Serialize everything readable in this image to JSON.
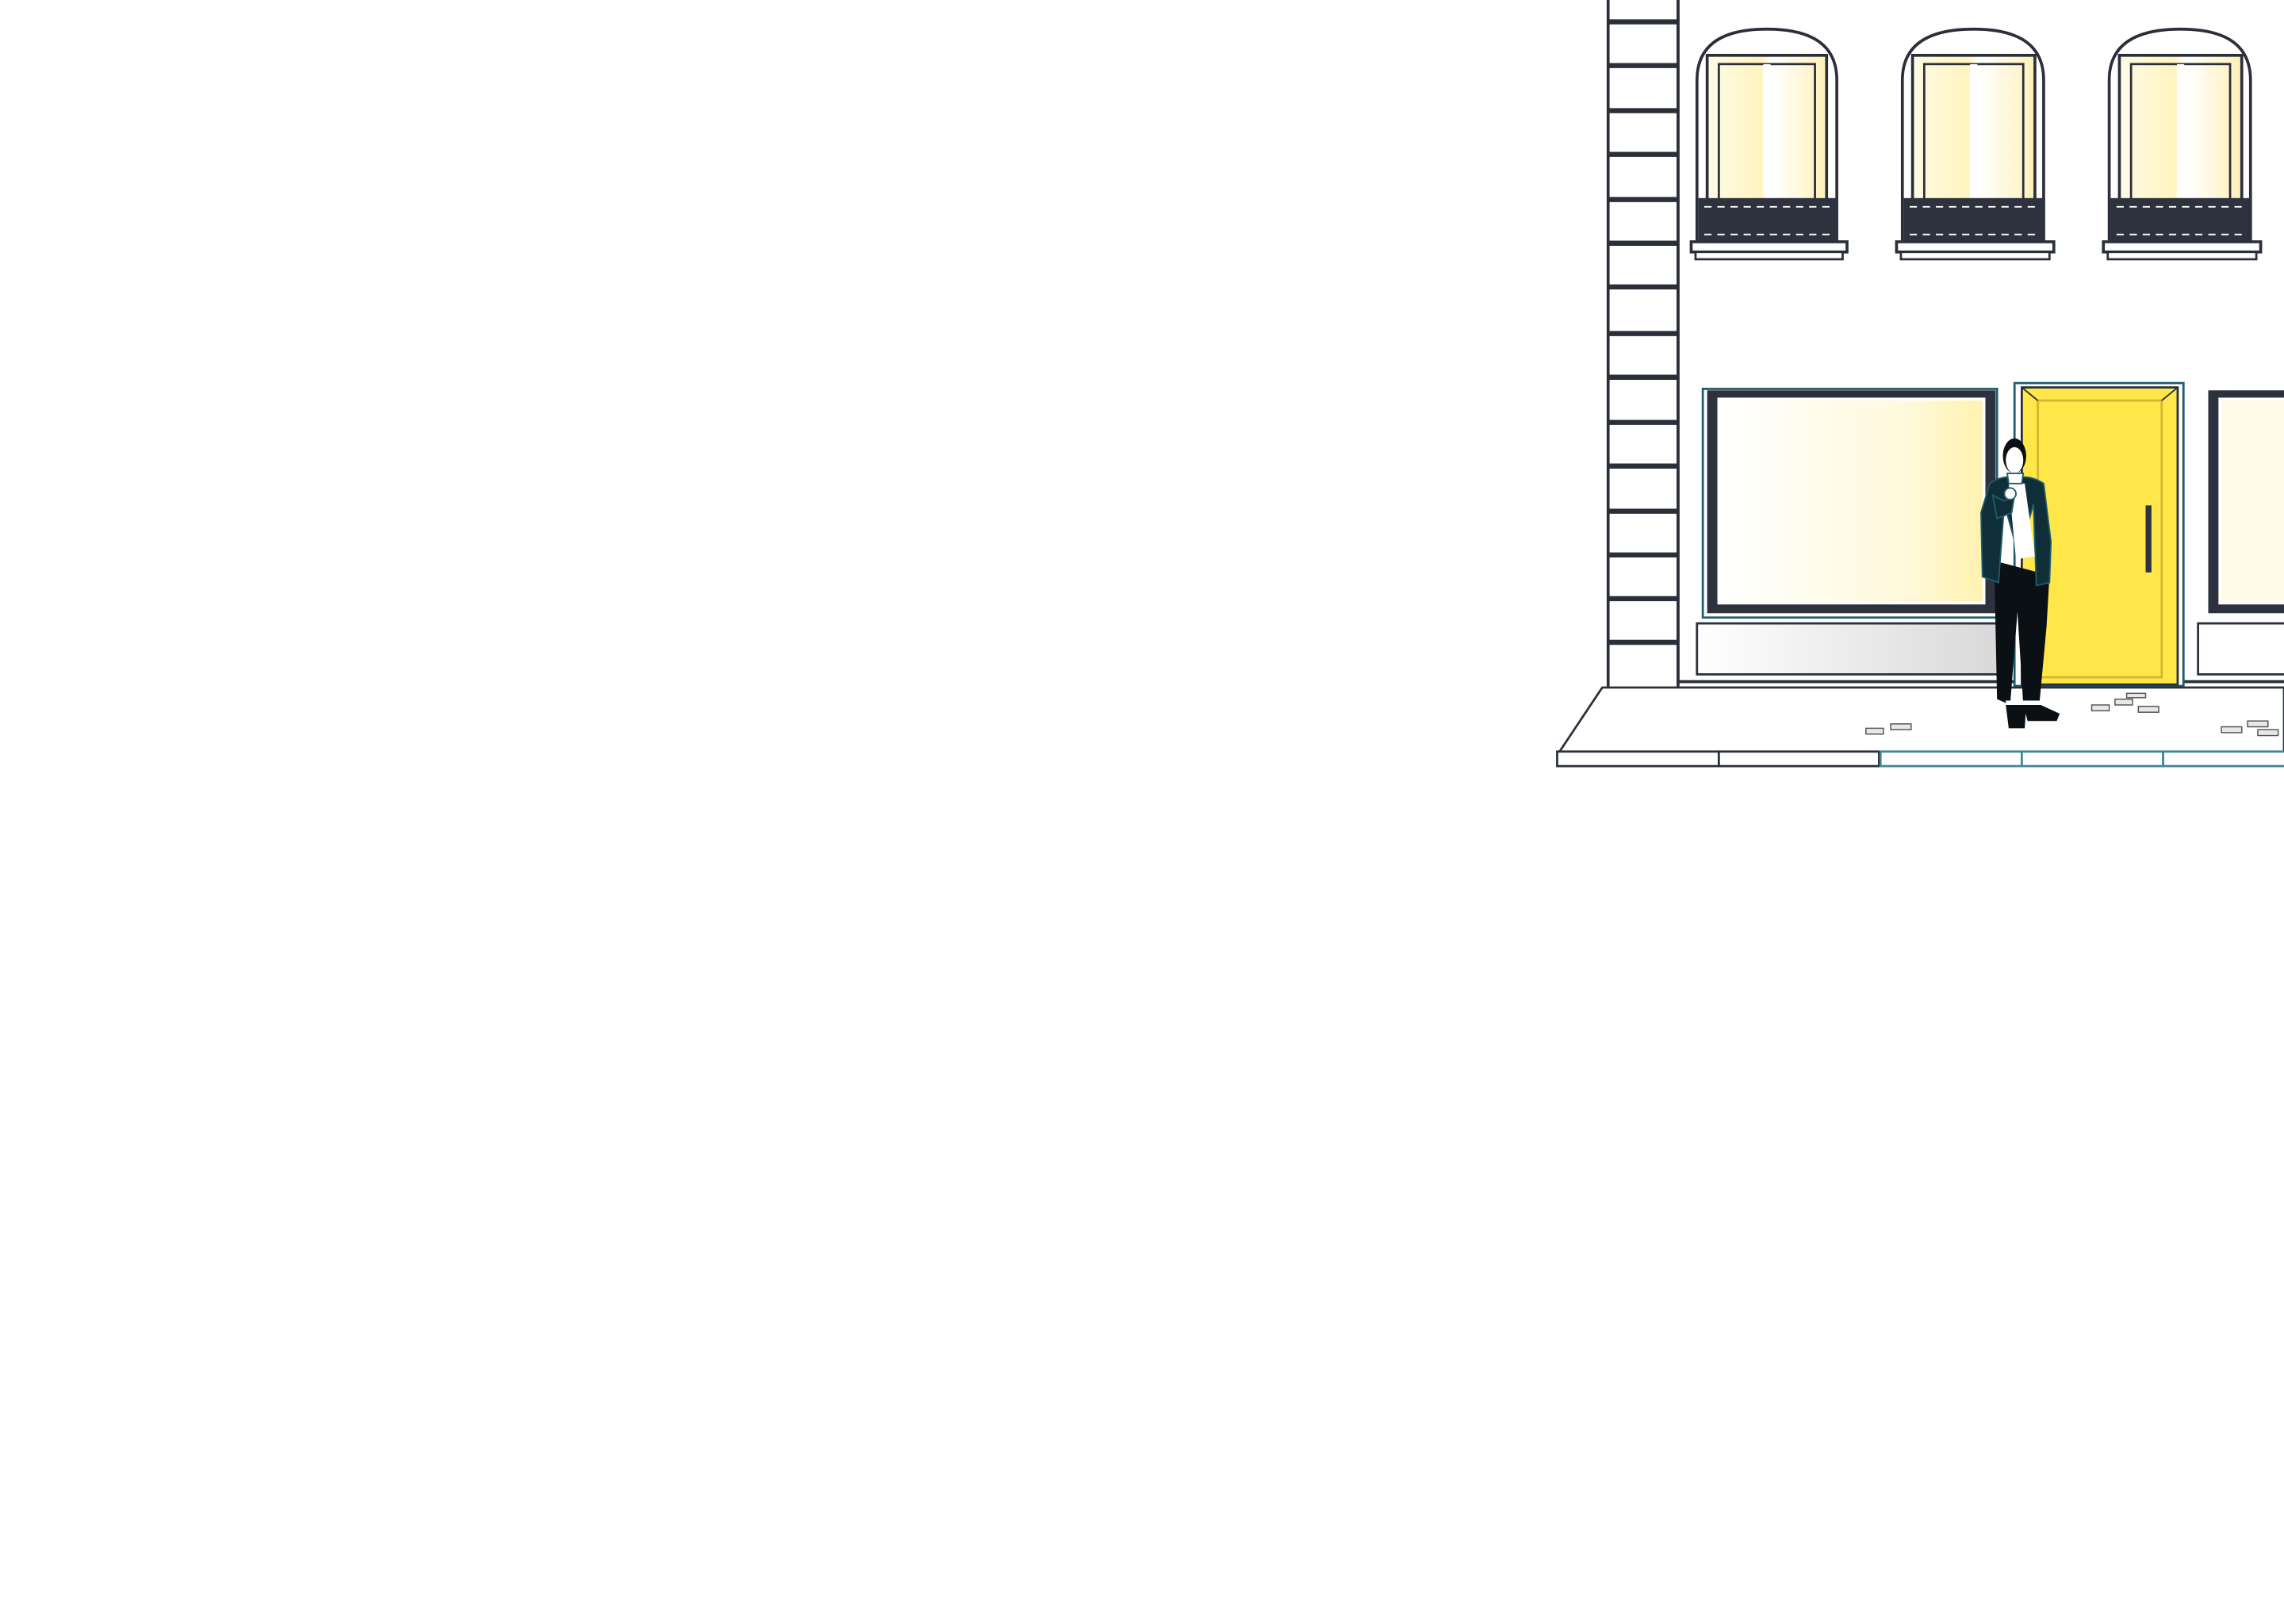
{
  "scene": {
    "background": "#ffffff",
    "colors": {
      "outline": "#2b2f3a",
      "dark": "#2e323e",
      "door_yellow": "#ffe74a",
      "glass_glow": "#fff6c8",
      "teal_outline": "#1f5b6b",
      "jacket": "#0f2e38",
      "trousers": "#0b1014",
      "shirt": "#ffffff",
      "sidewalk_teal": "#3f8797"
    },
    "icons": [
      "building-facade-icon",
      "ladder-icon",
      "person-icon",
      "door-icon",
      "window-icon"
    ]
  }
}
